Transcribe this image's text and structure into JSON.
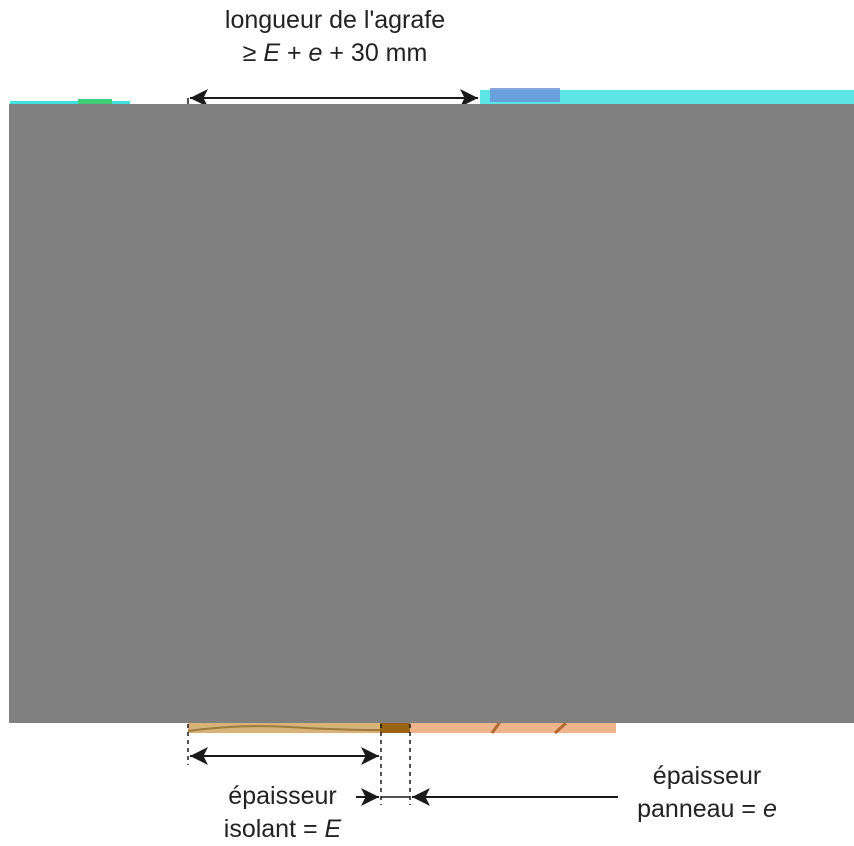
{
  "labels": {
    "staple_length": {
      "line1": "longueur de l'agrafe",
      "line2_prefix": "≥ ",
      "line2_E": "E",
      "line2_mid": " + ",
      "line2_e": "e",
      "line2_suffix": " + 30 mm"
    },
    "insulation_thickness": {
      "line1": "épaisseur",
      "line2_prefix": "isolant = ",
      "line2_var": "E"
    },
    "panel_thickness": {
      "line1": "épaisseur",
      "line2_prefix": "panneau = ",
      "line2_var": "e"
    }
  },
  "colors": {
    "occluder": "#808080",
    "insulation": "#d9b27a",
    "insulation_line": "#a07a3c",
    "panel": "#f0b48c",
    "panel_grain": "#b06a34",
    "staple_leg": "#9b6414",
    "arrow": "#1a1a1a",
    "artifact_cyan": "#3fe0e0",
    "artifact_green": "#3fcf7a"
  }
}
